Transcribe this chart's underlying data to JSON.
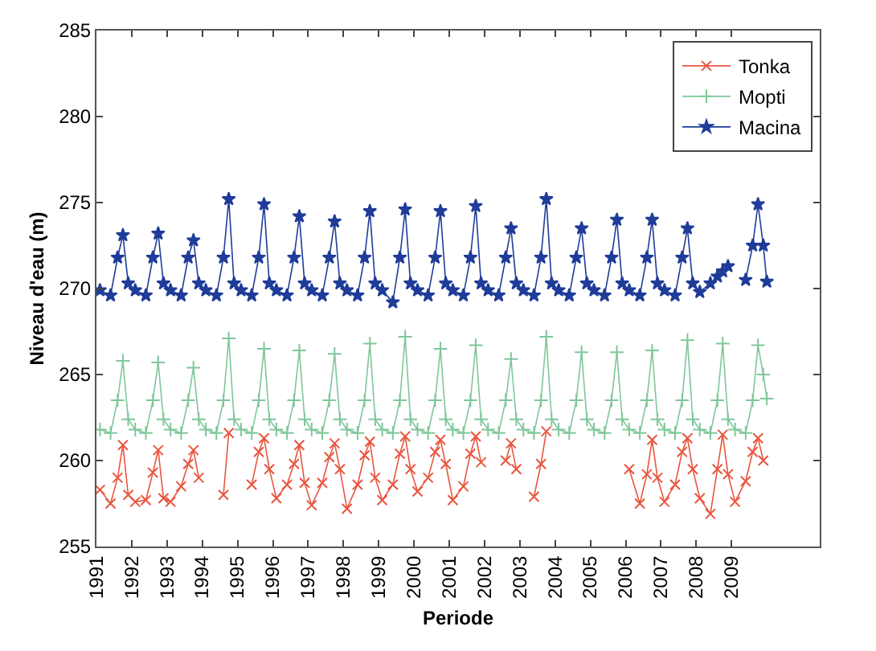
{
  "chart_data": {
    "type": "line",
    "xlabel": "Periode",
    "ylabel": "Niveau d'eau (m)",
    "xlim": [
      1991,
      2011.5
    ],
    "xticks": [
      1991,
      1992,
      1993,
      1994,
      1995,
      1996,
      1997,
      1998,
      1999,
      2000,
      2001,
      2002,
      2003,
      2004,
      2005,
      2006,
      2007,
      2008,
      2009
    ],
    "ylim": [
      255,
      285
    ],
    "yticks": [
      255,
      260,
      265,
      270,
      275,
      280,
      285
    ],
    "grid": false,
    "legend": "top right",
    "x": [
      1991.1,
      1991.4,
      1991.6,
      1991.75,
      1991.9,
      1992.1,
      1992.4,
      1992.6,
      1992.75,
      1992.9,
      1993.1,
      1993.4,
      1993.6,
      1993.75,
      1993.9,
      1994.1,
      1994.4,
      1994.6,
      1994.75,
      1994.9,
      1995.1,
      1995.4,
      1995.6,
      1995.75,
      1995.9,
      1996.1,
      1996.4,
      1996.6,
      1996.75,
      1996.9,
      1997.1,
      1997.4,
      1997.6,
      1997.75,
      1997.9,
      1998.1,
      1998.4,
      1998.6,
      1998.75,
      1998.9,
      1999.1,
      1999.4,
      1999.6,
      1999.75,
      1999.9,
      2000.1,
      2000.4,
      2000.6,
      2000.75,
      2000.9,
      2001.1,
      2001.4,
      2001.6,
      2001.75,
      2001.9,
      2002.1,
      2002.4,
      2002.6,
      2002.75,
      2002.9,
      2003.1,
      2003.4,
      2003.6,
      2003.75,
      2003.9,
      2004.1,
      2004.4,
      2004.6,
      2004.75,
      2004.9,
      2005.1,
      2005.4,
      2005.6,
      2005.75,
      2005.9,
      2006.1,
      2006.4,
      2006.6,
      2006.75,
      2006.9,
      2007.1,
      2007.4,
      2007.6,
      2007.75,
      2007.9,
      2008.1,
      2008.4,
      2008.6,
      2008.75,
      2008.9,
      2009.1,
      2009.4,
      2009.6,
      2009.75,
      2009.9,
      2010.0
    ],
    "series": [
      {
        "name": "Tonka",
        "color": "#e8553f",
        "marker": "cross",
        "values": [
          258.3,
          257.5,
          259.0,
          260.9,
          258.0,
          257.6,
          257.7,
          259.3,
          260.6,
          257.8,
          257.6,
          258.5,
          259.8,
          260.6,
          259.0,
          null,
          null,
          258.0,
          261.6,
          null,
          null,
          258.6,
          260.5,
          261.3,
          259.5,
          257.8,
          258.6,
          259.8,
          260.9,
          258.7,
          257.4,
          258.7,
          260.2,
          261.0,
          259.5,
          257.2,
          258.6,
          260.3,
          261.1,
          259.0,
          257.7,
          258.6,
          260.4,
          261.4,
          259.5,
          258.2,
          259.0,
          260.5,
          261.2,
          259.8,
          257.7,
          258.5,
          260.4,
          261.4,
          259.9,
          null,
          null,
          260.0,
          261.0,
          259.5,
          null,
          257.9,
          259.8,
          261.7,
          null,
          null,
          null,
          null,
          null,
          null,
          null,
          null,
          null,
          null,
          null,
          259.5,
          257.5,
          259.2,
          261.2,
          259.0,
          257.6,
          258.6,
          260.5,
          261.3,
          259.5,
          257.8,
          256.9,
          259.5,
          261.5,
          259.2,
          257.6,
          258.8,
          260.5,
          261.3,
          260.0,
          null
        ]
      },
      {
        "name": "Mopti",
        "color": "#7fc79a",
        "marker": "plus",
        "values": [
          261.8,
          261.6,
          263.5,
          265.8,
          262.4,
          261.8,
          261.6,
          263.5,
          265.7,
          262.4,
          261.8,
          261.6,
          263.5,
          265.4,
          262.4,
          261.8,
          261.6,
          263.5,
          267.1,
          262.4,
          261.8,
          261.6,
          263.5,
          266.5,
          262.4,
          261.8,
          261.6,
          263.5,
          266.4,
          262.4,
          261.8,
          261.6,
          263.5,
          266.2,
          262.4,
          261.8,
          261.6,
          263.5,
          266.8,
          262.4,
          261.8,
          261.6,
          263.5,
          267.2,
          262.4,
          261.8,
          261.6,
          263.5,
          266.5,
          262.4,
          261.8,
          261.6,
          263.5,
          266.7,
          262.4,
          261.8,
          261.6,
          263.5,
          265.9,
          262.4,
          261.8,
          261.6,
          263.5,
          267.2,
          262.4,
          261.8,
          261.6,
          263.5,
          266.3,
          262.4,
          261.8,
          261.6,
          263.5,
          266.3,
          262.4,
          261.8,
          261.6,
          263.5,
          266.4,
          262.4,
          261.8,
          261.6,
          263.5,
          267.0,
          262.4,
          261.8,
          261.6,
          263.5,
          266.8,
          262.4,
          261.8,
          261.6,
          263.5,
          266.7,
          265.0,
          263.6
        ]
      },
      {
        "name": "Macina",
        "color": "#1f3c99",
        "marker": "star",
        "values": [
          269.9,
          269.6,
          271.8,
          273.1,
          270.3,
          269.9,
          269.6,
          271.8,
          273.2,
          270.3,
          269.9,
          269.6,
          271.8,
          272.8,
          270.3,
          269.9,
          269.6,
          271.8,
          275.2,
          270.3,
          269.9,
          269.6,
          271.8,
          274.9,
          270.3,
          269.9,
          269.6,
          271.8,
          274.2,
          270.3,
          269.9,
          269.6,
          271.8,
          273.9,
          270.3,
          269.9,
          269.6,
          271.8,
          274.5,
          270.3,
          269.9,
          269.2,
          271.8,
          274.6,
          270.3,
          269.9,
          269.6,
          271.8,
          274.5,
          270.3,
          269.9,
          269.6,
          271.8,
          274.8,
          270.3,
          269.9,
          269.6,
          271.8,
          273.5,
          270.3,
          269.9,
          269.6,
          271.8,
          275.2,
          270.3,
          269.9,
          269.6,
          271.8,
          273.5,
          270.3,
          269.9,
          269.6,
          271.8,
          274.0,
          270.3,
          269.9,
          269.6,
          271.8,
          274.0,
          270.3,
          269.9,
          269.6,
          271.8,
          273.5,
          270.3,
          269.8,
          270.3,
          270.7,
          271.0,
          271.3,
          null,
          270.5,
          272.5,
          274.9,
          272.5,
          270.4
        ]
      }
    ]
  }
}
